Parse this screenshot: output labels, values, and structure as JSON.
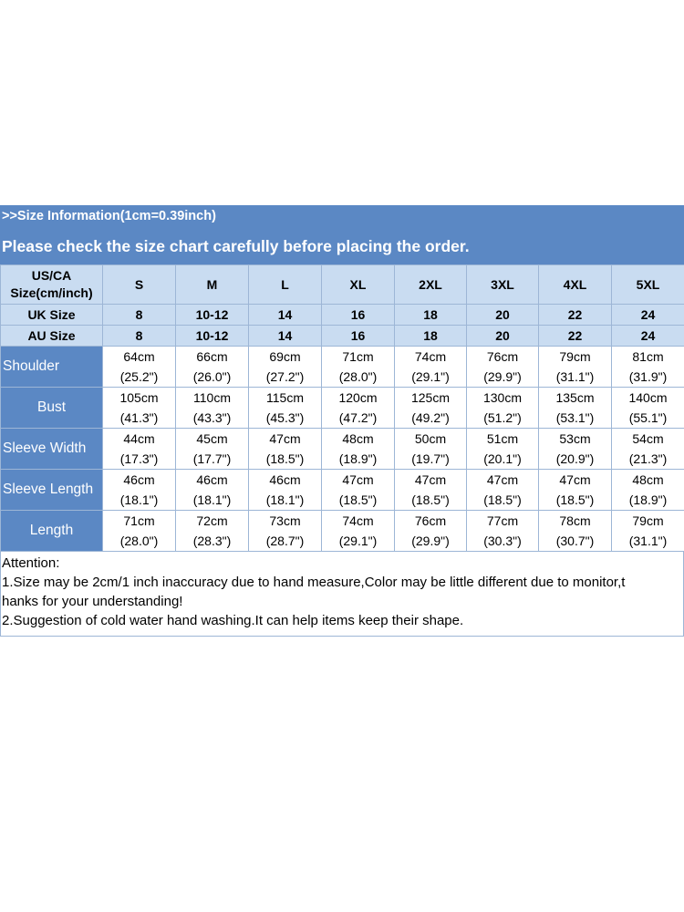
{
  "header": {
    "info": ">>Size Information(1cm=0.39inch)",
    "notice": "Please check the size chart carefully before placing the order."
  },
  "table": {
    "corner": [
      "US/CA",
      "Size(cm/inch)"
    ],
    "sizes": [
      "S",
      "M",
      "L",
      "XL",
      "2XL",
      "3XL",
      "4XL",
      "5XL"
    ],
    "uk": {
      "label": "UK Size",
      "values": [
        "8",
        "10-12",
        "14",
        "16",
        "18",
        "20",
        "22",
        "24"
      ]
    },
    "au": {
      "label": "AU Size",
      "values": [
        "8",
        "10-12",
        "14",
        "16",
        "18",
        "20",
        "22",
        "24"
      ]
    },
    "rows": [
      {
        "label": "Shoulder",
        "cm": [
          "64cm",
          "66cm",
          "69cm",
          "71cm",
          "74cm",
          "76cm",
          "79cm",
          "81cm"
        ],
        "inch": [
          "(25.2\")",
          "(26.0\")",
          "(27.2\")",
          "(28.0\")",
          "(29.1\")",
          "(29.9\")",
          "(31.1\")",
          "(31.9\")"
        ]
      },
      {
        "label": "Bust",
        "cm": [
          "105cm",
          "110cm",
          "115cm",
          "120cm",
          "125cm",
          "130cm",
          "135cm",
          "140cm"
        ],
        "inch": [
          "(41.3\")",
          "(43.3\")",
          "(45.3\")",
          "(47.2\")",
          "(49.2\")",
          "(51.2\")",
          "(53.1\")",
          "(55.1\")"
        ]
      },
      {
        "label": "Sleeve Width",
        "cm": [
          "44cm",
          "45cm",
          "47cm",
          "48cm",
          "50cm",
          "51cm",
          "53cm",
          "54cm"
        ],
        "inch": [
          "(17.3\")",
          "(17.7\")",
          "(18.5\")",
          "(18.9\")",
          "(19.7\")",
          "(20.1\")",
          "(20.9\")",
          "(21.3\")"
        ]
      },
      {
        "label": "Sleeve Length",
        "cm": [
          "46cm",
          "46cm",
          "46cm",
          "47cm",
          "47cm",
          "47cm",
          "47cm",
          "48cm"
        ],
        "inch": [
          "(18.1\")",
          "(18.1\")",
          "(18.1\")",
          "(18.5\")",
          "(18.5\")",
          "(18.5\")",
          "(18.5\")",
          "(18.9\")"
        ]
      },
      {
        "label": "Length",
        "cm": [
          "71cm",
          "72cm",
          "73cm",
          "74cm",
          "76cm",
          "77cm",
          "78cm",
          "79cm"
        ],
        "inch": [
          "(28.0\")",
          "(28.3\")",
          "(28.7\")",
          "(29.1\")",
          "(29.9\")",
          "(30.3\")",
          "(30.7\")",
          "(31.1\")"
        ]
      }
    ]
  },
  "notes": {
    "title": "Attention:",
    "line1": "1.Size may be 2cm/1 inch inaccuracy due to hand measure,Color may be little different due to monitor,t",
    "line1b": "hanks for your understanding!",
    "line2": "2.Suggestion of cold water hand washing.It can help items keep their shape."
  },
  "colors": {
    "header_blue": "#5b88c4",
    "light_blue": "#c9dcf1",
    "border": "#9db6d6"
  }
}
